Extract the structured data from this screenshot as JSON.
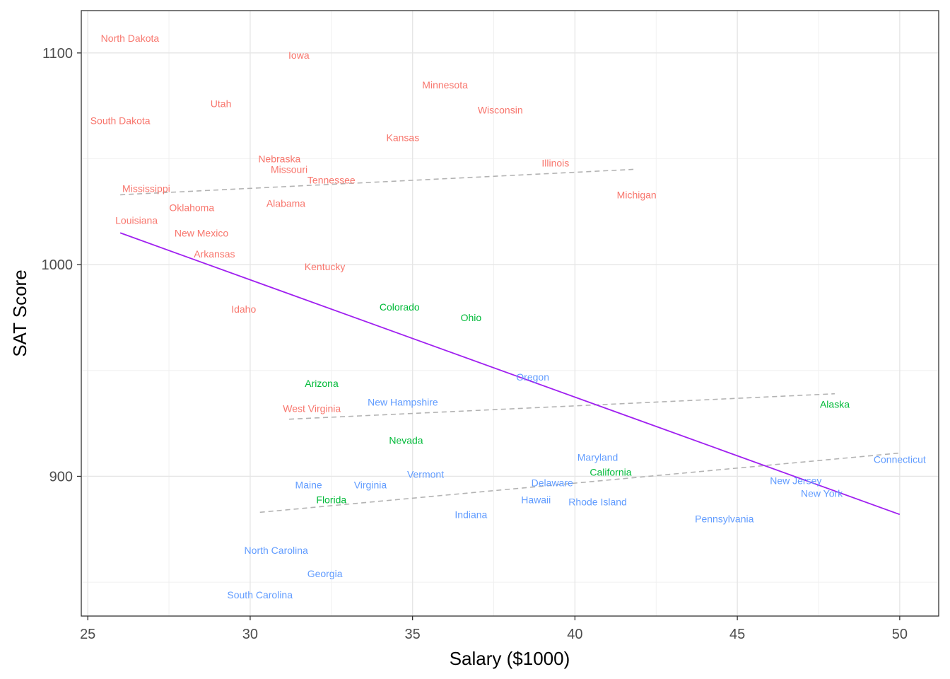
{
  "chart_data": {
    "type": "scatter",
    "xlabel": "Salary ($1000)",
    "ylabel": "SAT Score",
    "xlim": [
      24.8,
      51.2
    ],
    "ylim": [
      834,
      1120
    ],
    "x_ticks": [
      25,
      30,
      35,
      40,
      45,
      50
    ],
    "y_ticks": [
      900,
      1000,
      1100
    ],
    "grid": true,
    "colors": {
      "low": "#f8766d",
      "medium": "#00ba38",
      "high": "#619cff",
      "overall_fit": "#a020f0",
      "group_fit": "#b3b3b3"
    },
    "points": [
      {
        "label": "North Dakota",
        "x": 26.3,
        "y": 1107,
        "group": "low"
      },
      {
        "label": "Iowa",
        "x": 31.5,
        "y": 1099,
        "group": "low"
      },
      {
        "label": "Minnesota",
        "x": 36.0,
        "y": 1085,
        "group": "low"
      },
      {
        "label": "Utah",
        "x": 29.1,
        "y": 1076,
        "group": "low"
      },
      {
        "label": "Wisconsin",
        "x": 37.7,
        "y": 1073,
        "group": "low"
      },
      {
        "label": "South Dakota",
        "x": 26.0,
        "y": 1068,
        "group": "low"
      },
      {
        "label": "Kansas",
        "x": 34.7,
        "y": 1060,
        "group": "low"
      },
      {
        "label": "Nebraska",
        "x": 30.9,
        "y": 1050,
        "group": "low"
      },
      {
        "label": "Illinois",
        "x": 39.4,
        "y": 1048,
        "group": "low"
      },
      {
        "label": "Missouri",
        "x": 31.2,
        "y": 1045,
        "group": "low"
      },
      {
        "label": "Tennessee",
        "x": 32.5,
        "y": 1040,
        "group": "low"
      },
      {
        "label": "Mississippi",
        "x": 26.8,
        "y": 1036,
        "group": "low"
      },
      {
        "label": "Michigan",
        "x": 41.9,
        "y": 1033,
        "group": "low"
      },
      {
        "label": "Oklahoma",
        "x": 28.2,
        "y": 1027,
        "group": "low"
      },
      {
        "label": "Alabama",
        "x": 31.1,
        "y": 1029,
        "group": "low"
      },
      {
        "label": "Louisiana",
        "x": 26.5,
        "y": 1021,
        "group": "low"
      },
      {
        "label": "New Mexico",
        "x": 28.5,
        "y": 1015,
        "group": "low"
      },
      {
        "label": "Arkansas",
        "x": 28.9,
        "y": 1005,
        "group": "low"
      },
      {
        "label": "Kentucky",
        "x": 32.3,
        "y": 999,
        "group": "low"
      },
      {
        "label": "Idaho",
        "x": 29.8,
        "y": 979,
        "group": "low"
      },
      {
        "label": "West Virginia",
        "x": 31.9,
        "y": 932,
        "group": "low"
      },
      {
        "label": "Colorado",
        "x": 34.6,
        "y": 980,
        "group": "medium"
      },
      {
        "label": "Ohio",
        "x": 36.8,
        "y": 975,
        "group": "medium"
      },
      {
        "label": "Arizona",
        "x": 32.2,
        "y": 944,
        "group": "medium"
      },
      {
        "label": "Alaska",
        "x": 48.0,
        "y": 934,
        "group": "medium"
      },
      {
        "label": "Nevada",
        "x": 34.8,
        "y": 917,
        "group": "medium"
      },
      {
        "label": "California",
        "x": 41.1,
        "y": 902,
        "group": "medium"
      },
      {
        "label": "Florida",
        "x": 32.5,
        "y": 889,
        "group": "medium"
      },
      {
        "label": "Oregon",
        "x": 38.7,
        "y": 947,
        "group": "high"
      },
      {
        "label": "New Hampshire",
        "x": 34.7,
        "y": 935,
        "group": "high"
      },
      {
        "label": "Maryland",
        "x": 40.7,
        "y": 909,
        "group": "high"
      },
      {
        "label": "Connecticut",
        "x": 50.0,
        "y": 908,
        "group": "high"
      },
      {
        "label": "Vermont",
        "x": 35.4,
        "y": 901,
        "group": "high"
      },
      {
        "label": "Delaware",
        "x": 39.3,
        "y": 897,
        "group": "high"
      },
      {
        "label": "New Jersey",
        "x": 46.8,
        "y": 898,
        "group": "high"
      },
      {
        "label": "Maine",
        "x": 31.8,
        "y": 896,
        "group": "high"
      },
      {
        "label": "Virginia",
        "x": 33.7,
        "y": 896,
        "group": "high"
      },
      {
        "label": "New York",
        "x": 47.6,
        "y": 892,
        "group": "high"
      },
      {
        "label": "Hawaii",
        "x": 38.8,
        "y": 889,
        "group": "high"
      },
      {
        "label": "Rhode Island",
        "x": 40.7,
        "y": 888,
        "group": "high"
      },
      {
        "label": "Indiana",
        "x": 36.8,
        "y": 882,
        "group": "high"
      },
      {
        "label": "Pennsylvania",
        "x": 44.6,
        "y": 880,
        "group": "high"
      },
      {
        "label": "North Carolina",
        "x": 30.8,
        "y": 865,
        "group": "high"
      },
      {
        "label": "Georgia",
        "x": 32.3,
        "y": 854,
        "group": "high"
      },
      {
        "label": "South Carolina",
        "x": 30.3,
        "y": 844,
        "group": "high"
      }
    ],
    "overall_fit": {
      "x": [
        26.0,
        50.0
      ],
      "y": [
        1015,
        882
      ]
    },
    "group_fits": [
      {
        "group": "low",
        "x": [
          26.0,
          41.8
        ],
        "y": [
          1033,
          1045
        ]
      },
      {
        "group": "medium",
        "x": [
          31.2,
          48.0
        ],
        "y": [
          927,
          939
        ]
      },
      {
        "group": "high",
        "x": [
          30.3,
          50.0
        ],
        "y": [
          883,
          911
        ]
      }
    ]
  }
}
